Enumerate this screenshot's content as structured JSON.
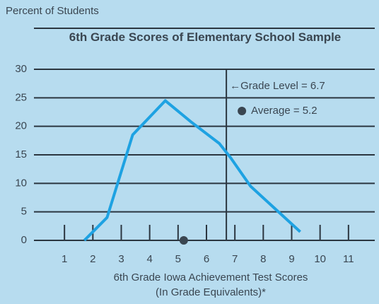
{
  "chart_data": {
    "type": "line",
    "title": "6th Grade Scores of Elementary School Sample",
    "ylabel": "Percent of Students",
    "xlabel": [
      "6th Grade Iowa Achievement Test Scores",
      "(In Grade Equivalents)*"
    ],
    "x": [
      1.7,
      2.5,
      3.4,
      4.55,
      5.45,
      6.45,
      6.85,
      7.55,
      9.3
    ],
    "series": [
      {
        "color": "#1ea2e2",
        "values": [
          0,
          4,
          18.5,
          24.5,
          20.8,
          17,
          14.5,
          9.5,
          1.5
        ]
      }
    ],
    "xlim": [
      0,
      12
    ],
    "ylim": [
      0,
      30
    ],
    "xticks": [
      1,
      2,
      3,
      4,
      5,
      6,
      7,
      8,
      9,
      10,
      11
    ],
    "yticks": [
      0,
      5,
      10,
      15,
      20,
      25,
      30
    ],
    "grid": true,
    "reference_line": {
      "x": 6.7,
      "label": "←Grade Level = 6.7"
    },
    "average_marker": {
      "x": 5.2,
      "label": "Average = 5.2"
    }
  }
}
